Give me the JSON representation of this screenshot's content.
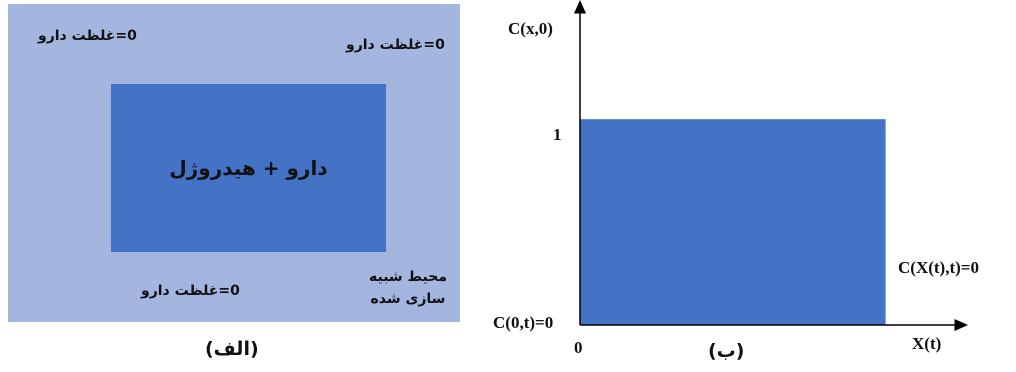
{
  "panel_a": {
    "inner_label": "دارو + هیدروژل",
    "top_left_label": "0=غلظت دارو",
    "top_right_label": "0=غلظت دارو",
    "bottom_label": "0=غلظت دارو",
    "medium_label_line1": "محیط شبیه",
    "medium_label_line2": "سازی شده",
    "caption": "(الف)",
    "colors": {
      "outer": "#a4b6e0",
      "inner": "#4472c4"
    }
  },
  "panel_b": {
    "caption": "(ب)",
    "ylabel": "C(x,0)",
    "xlabel": "X(t)",
    "origin_label": "0",
    "y_tick_label": "1",
    "left_boundary_label": "C(0,t)=0",
    "right_boundary_label": "C(X(t),t)=0"
  },
  "chart_data": {
    "type": "area",
    "x": [
      0,
      0,
      1,
      1
    ],
    "y": [
      0,
      1,
      1,
      0
    ],
    "ylim": [
      0,
      1.55
    ],
    "xlim": [
      0,
      1.25
    ],
    "ylabel": "C(x,0)",
    "xlabel": "X(t)",
    "annotations": [
      "C(0,t)=0",
      "C(X(t),t)=0"
    ],
    "colors": {
      "fill": "#4472c4",
      "axis": "#000000"
    },
    "grid": false
  }
}
